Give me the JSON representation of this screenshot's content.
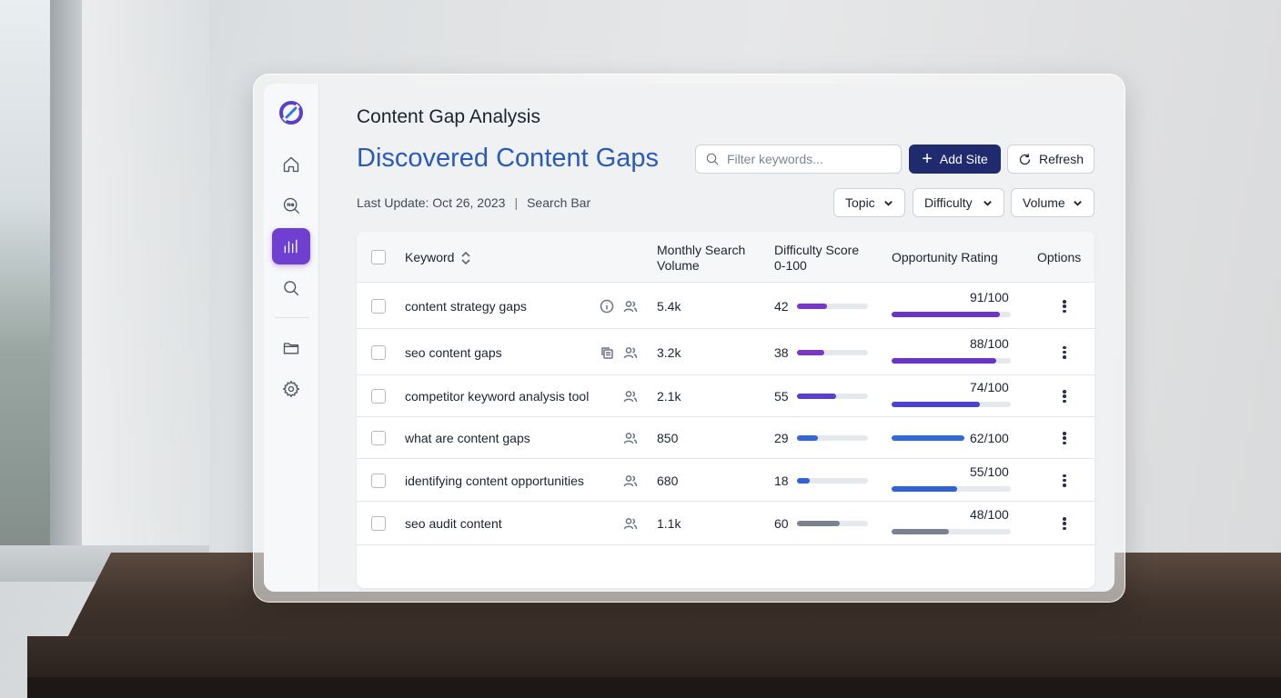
{
  "app": {
    "page_title": "Content Gap Analysis",
    "section_title": "Discovered Content Gaps",
    "last_update": "Last Update: Oct 26, 2023",
    "separator": "|",
    "search_bar_label": "Search Bar"
  },
  "toolbar": {
    "search_placeholder": "Filter keywords...",
    "add_site_label": "Add Site",
    "refresh_label": "Refresh"
  },
  "filters": {
    "topic": "Topic",
    "difficulty": "Difficulty",
    "volume": "Volume"
  },
  "sidebar": {
    "items": [
      {
        "icon": "home-icon"
      },
      {
        "icon": "seo-icon"
      },
      {
        "icon": "bar-chart-icon",
        "active": true
      },
      {
        "icon": "search-icon"
      },
      {
        "icon": "folder-icon"
      },
      {
        "icon": "gear-icon"
      }
    ]
  },
  "table": {
    "headers": {
      "keyword": "Keyword",
      "volume_line1": "Monthly Search",
      "volume_line2": "Volume",
      "difficulty_line1": "Difficulty Score",
      "difficulty_line2": "0-100",
      "opportunity": "Opportunity Rating",
      "options": "Options"
    },
    "rows": [
      {
        "keyword": "content strategy gaps",
        "icons": [
          "info-icon",
          "users-icon"
        ],
        "volume": "5.4k",
        "difficulty": 42,
        "difficulty_label": "42",
        "opportunity": 91,
        "opportunity_label": "91/100",
        "diff_color": "#7a35c9",
        "opp_color": "#6a35c6"
      },
      {
        "keyword": "seo content gaps",
        "icons": [
          "copy-icon",
          "users-icon"
        ],
        "volume": "3.2k",
        "difficulty": 38,
        "difficulty_label": "38",
        "opportunity": 88,
        "opportunity_label": "88/100",
        "diff_color": "#7a35c9",
        "opp_color": "#6a35c6"
      },
      {
        "keyword": "competitor keyword analysis tool",
        "icons": [
          "users-icon"
        ],
        "volume": "2.1k",
        "difficulty": 55,
        "difficulty_label": "55",
        "opportunity": 74,
        "opportunity_label": "74/100",
        "diff_color": "#5d3fcf",
        "opp_color": "#4b44cd"
      },
      {
        "keyword": "what are content gaps",
        "icons": [
          "users-icon"
        ],
        "volume": "850",
        "difficulty": 29,
        "difficulty_label": "29",
        "opportunity": 62,
        "opportunity_label": "62/100",
        "diff_color": "#2f6ad8",
        "opp_color": "#2f6ad8"
      },
      {
        "keyword": "identifying content opportunities",
        "icons": [
          "users-icon"
        ],
        "volume": "680",
        "difficulty": 18,
        "difficulty_label": "18",
        "opportunity": 55,
        "opportunity_label": "55/100",
        "diff_color": "#2f62d6",
        "opp_color": "#2f62d6"
      },
      {
        "keyword": "seo audit content",
        "icons": [
          "users-icon"
        ],
        "volume": "1.1k",
        "difficulty": 60,
        "difficulty_label": "60",
        "opportunity": 48,
        "opportunity_label": "48/100",
        "diff_color": "#7a8291",
        "opp_color": "#7a8291"
      }
    ]
  },
  "colors": {
    "accent": "#6e3fd1",
    "primary_button": "#1f2b6e",
    "title_blue": "#2a5bb8"
  }
}
